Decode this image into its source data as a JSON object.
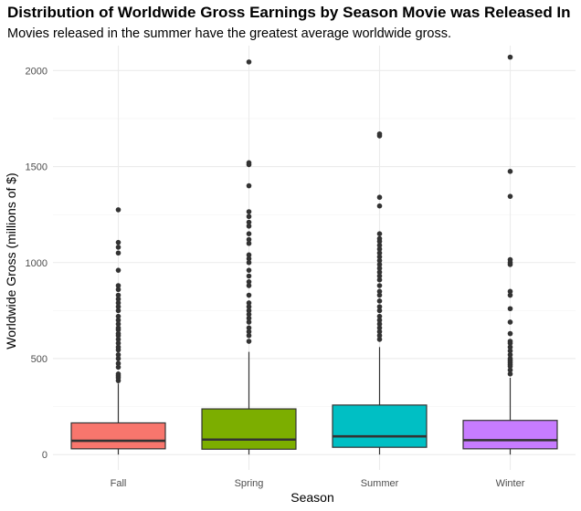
{
  "chart_data": {
    "type": "box",
    "title": "Distribution of Worldwide Gross Earnings by Season Movie was Released In",
    "subtitle": "Movies released in the summer have the greatest average worldwide gross.",
    "xlabel": "Season",
    "ylabel": "Worldwide Gross (millions of $)",
    "ylim": [
      -80,
      2130
    ],
    "yticks": [
      0,
      500,
      1000,
      1500,
      2000
    ],
    "grid": true,
    "legend": "none",
    "categories": [
      "Fall",
      "Spring",
      "Summer",
      "Winter"
    ],
    "colors": [
      "#F8766D",
      "#7CAE00",
      "#00BFC4",
      "#C77CFF"
    ],
    "boxes": [
      {
        "q1": 30,
        "median": 72,
        "q3": 165,
        "whisker_low": 0,
        "whisker_high": 370,
        "outliers": [
          385,
          400,
          410,
          420,
          455,
          475,
          500,
          520,
          545,
          560,
          580,
          600,
          620,
          630,
          650,
          660,
          680,
          700,
          720,
          750,
          770,
          790,
          810,
          830,
          860,
          880,
          960,
          1050,
          1080,
          1105,
          1275
        ]
      },
      {
        "q1": 28,
        "median": 78,
        "q3": 238,
        "whisker_low": 0,
        "whisker_high": 535,
        "outliers": [
          590,
          620,
          640,
          660,
          690,
          710,
          730,
          750,
          770,
          790,
          830,
          880,
          900,
          930,
          960,
          1000,
          1020,
          1040,
          1100,
          1120,
          1150,
          1190,
          1210,
          1240,
          1265,
          1400,
          1510,
          1520,
          2045
        ]
      },
      {
        "q1": 38,
        "median": 95,
        "q3": 258,
        "whisker_low": 0,
        "whisker_high": 560,
        "outliers": [
          600,
          620,
          640,
          660,
          680,
          700,
          720,
          750,
          770,
          800,
          830,
          850,
          880,
          910,
          930,
          950,
          970,
          990,
          1010,
          1030,
          1050,
          1070,
          1090,
          1110,
          1125,
          1150,
          1295,
          1340,
          1660,
          1670
        ]
      },
      {
        "q1": 30,
        "median": 75,
        "q3": 178,
        "whisker_low": 0,
        "whisker_high": 400,
        "outliers": [
          420,
          440,
          460,
          470,
          480,
          490,
          500,
          520,
          540,
          560,
          580,
          590,
          630,
          690,
          760,
          830,
          850,
          990,
          1000,
          1015,
          1345,
          1475,
          2070
        ]
      }
    ]
  }
}
